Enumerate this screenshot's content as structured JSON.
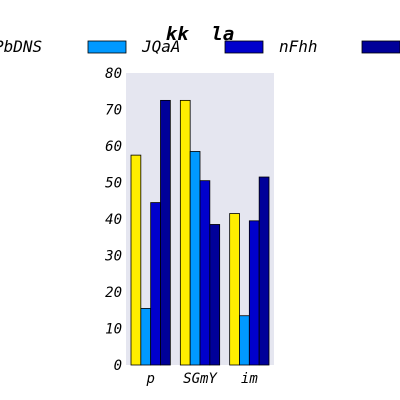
{
  "chart_data": {
    "type": "bar",
    "title": "kk  la",
    "xlabel": "",
    "ylabel": "",
    "categories": [
      "p",
      "SGmY",
      "im"
    ],
    "series": [
      {
        "name": "PbDNS",
        "color": "#ffee00",
        "values": [
          57.5,
          72.5,
          41.5
        ]
      },
      {
        "name": "JQaA",
        "color": "#0099ff",
        "values": [
          15.5,
          58.5,
          13.5
        ]
      },
      {
        "name": "nFhh",
        "color": "#0000cc",
        "values": [
          44.5,
          50.5,
          39.5
        ]
      },
      {
        "name": "",
        "color": "#000099",
        "values": [
          72.5,
          38.5,
          51.5
        ]
      }
    ],
    "ylim": [
      0,
      80
    ],
    "yticks": [
      0,
      10,
      20,
      30,
      40,
      50,
      60,
      70,
      80
    ],
    "grid": false,
    "plot_background": "#e5e6f0",
    "legend_position": "top"
  }
}
